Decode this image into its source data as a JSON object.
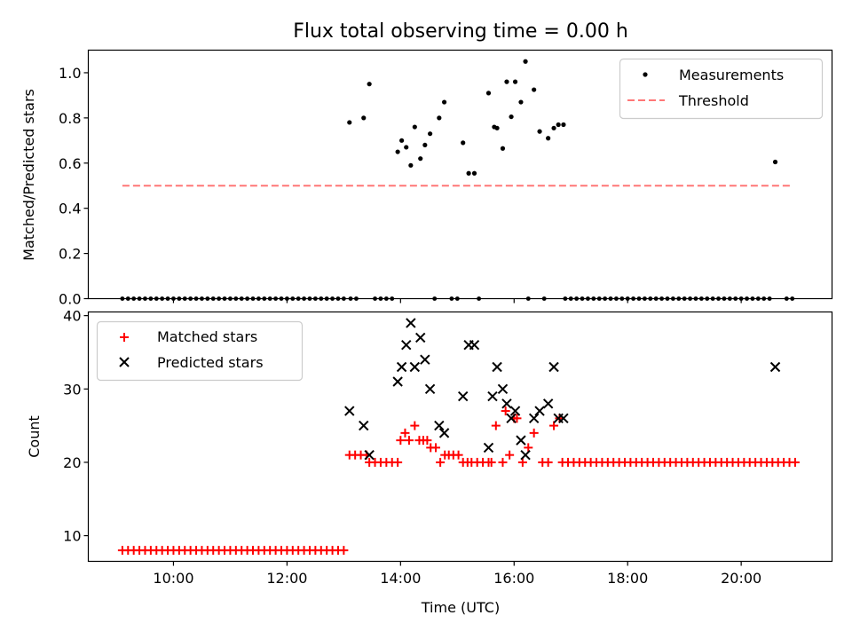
{
  "chart_data": [
    {
      "type": "scatter",
      "title": "Flux total observing time = 0.00 h",
      "xlabel": "",
      "ylabel": "Matched/Predicted stars",
      "xlim": [
        8.5,
        21.6
      ],
      "ylim": [
        0.0,
        1.1
      ],
      "yticks": [
        0.0,
        0.2,
        0.4,
        0.6,
        0.8,
        1.0
      ],
      "ytick_labels": [
        "0.0",
        "0.2",
        "0.4",
        "0.6",
        "0.8",
        "1.0"
      ],
      "legend_position": "upper-right",
      "series": [
        {
          "name": "Measurements",
          "marker": "dot",
          "color": "#000000",
          "zero_x_ranges": [
            [
              9.1,
              13.0
            ],
            [
              13.12,
              13.22
            ],
            [
              13.55,
              13.9
            ],
            [
              14.6,
              14.6
            ],
            [
              14.9,
              15.05
            ],
            [
              15.38,
              15.45
            ],
            [
              16.25,
              16.25
            ],
            [
              16.53,
              16.53
            ],
            [
              16.9,
              20.5
            ],
            [
              20.8,
              20.95
            ]
          ],
          "points": [
            [
              13.1,
              0.78
            ],
            [
              13.35,
              0.8
            ],
            [
              13.45,
              0.95
            ],
            [
              13.95,
              0.65
            ],
            [
              14.02,
              0.7
            ],
            [
              14.1,
              0.67
            ],
            [
              14.18,
              0.59
            ],
            [
              14.25,
              0.76
            ],
            [
              14.35,
              0.62
            ],
            [
              14.43,
              0.68
            ],
            [
              14.52,
              0.73
            ],
            [
              14.68,
              0.8
            ],
            [
              14.77,
              0.87
            ],
            [
              15.1,
              0.69
            ],
            [
              15.2,
              0.555
            ],
            [
              15.3,
              0.555
            ],
            [
              15.55,
              0.91
            ],
            [
              15.65,
              0.76
            ],
            [
              15.7,
              0.755
            ],
            [
              15.8,
              0.665
            ],
            [
              15.87,
              0.96
            ],
            [
              15.95,
              0.805
            ],
            [
              16.02,
              0.96
            ],
            [
              16.12,
              0.87
            ],
            [
              16.2,
              1.05
            ],
            [
              16.35,
              0.925
            ],
            [
              16.45,
              0.74
            ],
            [
              16.6,
              0.71
            ],
            [
              16.7,
              0.755
            ],
            [
              16.78,
              0.77
            ],
            [
              16.87,
              0.77
            ],
            [
              20.6,
              0.605
            ]
          ]
        },
        {
          "name": "Threshold",
          "style": "dashed-line",
          "color": "#ff7777",
          "x": [
            9.1,
            20.9
          ],
          "y": [
            0.5,
            0.5
          ]
        }
      ]
    },
    {
      "type": "scatter",
      "title": "",
      "xlabel": "Time (UTC)",
      "ylabel": "Count",
      "xlim": [
        8.5,
        21.6
      ],
      "ylim": [
        6.5,
        40.5
      ],
      "yticks": [
        10,
        20,
        30,
        40
      ],
      "ytick_labels": [
        "10",
        "20",
        "30",
        "40"
      ],
      "xticks": [
        10,
        12,
        14,
        16,
        18,
        20
      ],
      "xtick_labels": [
        "10:00",
        "12:00",
        "14:00",
        "16:00",
        "18:00",
        "20:00"
      ],
      "legend_position": "upper-left",
      "series": [
        {
          "name": "Matched stars",
          "marker": "plus",
          "color": "#ff0000",
          "flat_runs": [
            [
              9.1,
              13.0,
              8
            ],
            [
              13.1,
              13.4,
              21
            ],
            [
              13.45,
              13.95,
              20
            ],
            [
              15.25,
              15.55,
              20
            ],
            [
              16.85,
              20.95,
              20
            ]
          ],
          "points": [
            [
              14.0,
              23
            ],
            [
              14.08,
              24
            ],
            [
              14.15,
              23
            ],
            [
              14.25,
              25
            ],
            [
              14.33,
              23
            ],
            [
              14.4,
              23
            ],
            [
              14.47,
              23
            ],
            [
              14.53,
              22
            ],
            [
              14.62,
              22
            ],
            [
              14.7,
              20
            ],
            [
              14.78,
              21
            ],
            [
              14.85,
              21
            ],
            [
              14.93,
              21
            ],
            [
              15.02,
              21
            ],
            [
              15.1,
              20
            ],
            [
              15.18,
              20
            ],
            [
              15.6,
              20
            ],
            [
              15.68,
              25
            ],
            [
              15.8,
              20
            ],
            [
              15.85,
              27
            ],
            [
              15.92,
              21
            ],
            [
              16.0,
              26
            ],
            [
              16.05,
              26
            ],
            [
              16.15,
              20
            ],
            [
              16.25,
              22
            ],
            [
              16.35,
              24
            ],
            [
              16.5,
              20
            ],
            [
              16.6,
              20
            ],
            [
              16.7,
              25
            ],
            [
              16.8,
              26
            ]
          ]
        },
        {
          "name": "Predicted stars",
          "marker": "x",
          "color": "#000000",
          "points": [
            [
              13.1,
              27
            ],
            [
              13.35,
              25
            ],
            [
              13.45,
              21
            ],
            [
              13.95,
              31
            ],
            [
              14.02,
              33
            ],
            [
              14.1,
              36
            ],
            [
              14.18,
              39
            ],
            [
              14.25,
              33
            ],
            [
              14.35,
              37
            ],
            [
              14.43,
              34
            ],
            [
              14.52,
              30
            ],
            [
              14.68,
              25
            ],
            [
              14.77,
              24
            ],
            [
              15.1,
              29
            ],
            [
              15.2,
              36
            ],
            [
              15.3,
              36
            ],
            [
              15.55,
              22
            ],
            [
              15.62,
              29
            ],
            [
              15.7,
              33
            ],
            [
              15.8,
              30
            ],
            [
              15.87,
              28
            ],
            [
              15.95,
              26
            ],
            [
              16.02,
              27
            ],
            [
              16.12,
              23
            ],
            [
              16.2,
              21
            ],
            [
              16.35,
              26
            ],
            [
              16.45,
              27
            ],
            [
              16.6,
              28
            ],
            [
              16.7,
              33
            ],
            [
              16.78,
              26
            ],
            [
              16.87,
              26
            ],
            [
              20.6,
              33
            ]
          ]
        }
      ]
    }
  ]
}
